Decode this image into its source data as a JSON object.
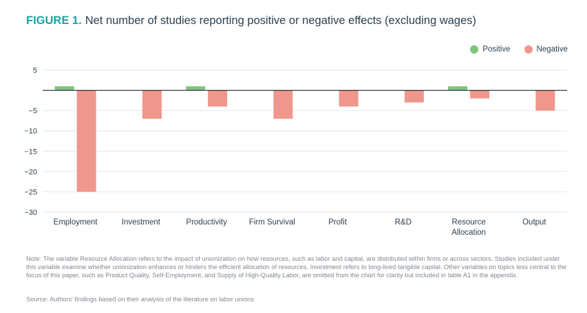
{
  "title": {
    "figure_label": "FIGURE 1.",
    "text": "Net number of studies reporting positive or negative effects (excluding wages)"
  },
  "legend": {
    "positive": {
      "label": "Positive",
      "color": "#7fc47f"
    },
    "negative": {
      "label": "Negative",
      "color": "#ef978c"
    }
  },
  "chart_data": {
    "type": "bar",
    "title": "Net number of studies reporting positive or negative effects (excluding wages)",
    "xlabel": "",
    "ylabel": "",
    "ylim": [
      -30,
      5
    ],
    "yticks": [
      5,
      0,
      -5,
      -10,
      -15,
      -20,
      -25,
      -30
    ],
    "ytick_labels": [
      "5",
      "",
      "−5",
      "−10",
      "−15",
      "−20",
      "−25",
      "−30"
    ],
    "grid": true,
    "legend_position": "top-right",
    "categories": [
      [
        "Employment"
      ],
      [
        "Investment"
      ],
      [
        "Productivity"
      ],
      [
        "Firm Survival"
      ],
      [
        "Profit"
      ],
      [
        "R&D"
      ],
      [
        "Resource",
        "Allocation"
      ],
      [
        "Output"
      ]
    ],
    "series": [
      {
        "name": "Positive",
        "color": "#7fc47f",
        "values": [
          1,
          0,
          1,
          0,
          0,
          0,
          1,
          0
        ]
      },
      {
        "name": "Negative",
        "color": "#ef978c",
        "values": [
          -25,
          -7,
          -4,
          -7,
          -4,
          -3,
          -2,
          -5
        ]
      }
    ]
  },
  "note": "Note: The variable Resource Allocation refers to the impact of unionization on how resources, such as labor and capital, are distributed within firms or across sectors. Studies included under this variable examine whether unionization enhances or hinders the efficient allocation of resources. Investment refers to long-lived tangible capital. Other variables on topics less central to the focus of this paper, such as Product Quality, Self-Employment, and Supply of High-Quality Labor, are omitted from the chart for clarity but included in table A1 in the appendix.",
  "source": "Source: Authors' findings based on their analysis of the literature on labor unions"
}
